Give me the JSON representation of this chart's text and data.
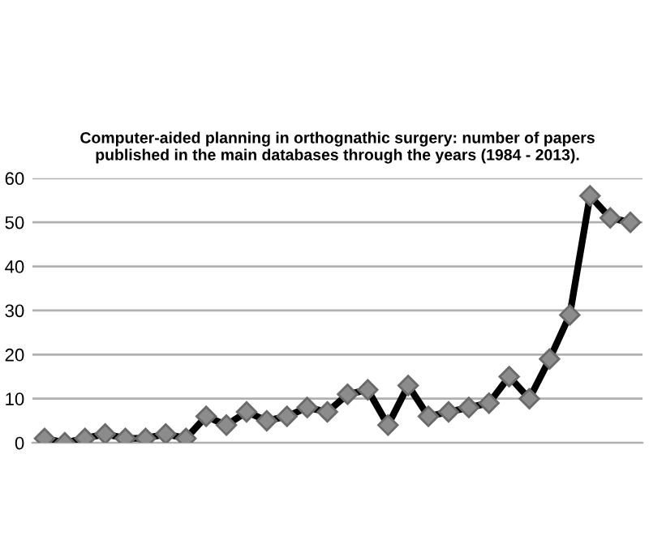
{
  "chart_data": {
    "type": "line",
    "title": "Computer-aided planning in orthognathic surgery: number of papers\npublished in the main databases through the years (1984 - 2013).",
    "categories": [
      null,
      null,
      null,
      null,
      null,
      null,
      null,
      null,
      null,
      null,
      null,
      null,
      null,
      null,
      null,
      null,
      null,
      null,
      null,
      null,
      null,
      null,
      null,
      null,
      null,
      null,
      null,
      null,
      null,
      null
    ],
    "series": [
      {
        "color": "#000000",
        "values": [
          1,
          0,
          1,
          2,
          1,
          1,
          2,
          1,
          6,
          4,
          7,
          5,
          6,
          8,
          7,
          11,
          12,
          4,
          13,
          6,
          7,
          8,
          9,
          15,
          10,
          19,
          29,
          56,
          51,
          50
        ]
      }
    ],
    "ylim": [
      0,
      60
    ],
    "yticks": [
      0,
      10,
      20,
      30,
      40,
      50,
      60
    ],
    "grid": "y",
    "marker": "diamond",
    "line_style": "solid"
  }
}
